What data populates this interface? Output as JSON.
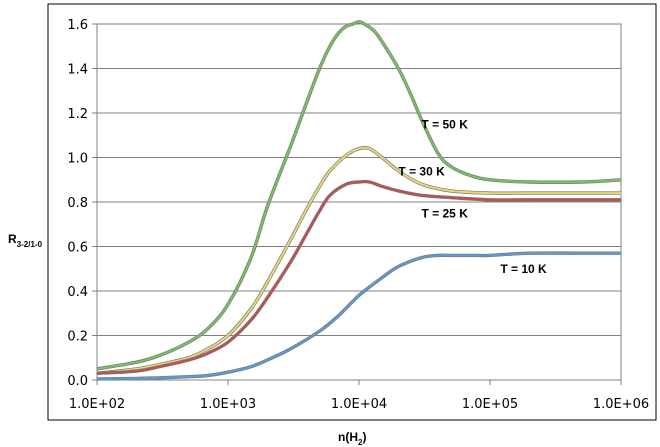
{
  "chart_data": {
    "type": "line",
    "xscale": "log",
    "xlim": [
      100,
      1000000
    ],
    "ylim": [
      0,
      1.6
    ],
    "grid": "horizontal",
    "xlabel": "n(H",
    "xlabel_sub": "2",
    "xlabel_suffix": ")",
    "ylabel": "R",
    "ylabel_sub": "3-2/1-0",
    "x_ticks": [
      "1.0E+02",
      "1.0E+03",
      "1.0E+04",
      "1.0E+05",
      "1.0E+06"
    ],
    "y_ticks": [
      "0.0",
      "0.2",
      "0.4",
      "0.6",
      "0.8",
      "1.0",
      "1.2",
      "1.4",
      "1.6"
    ],
    "series": [
      {
        "name": "T = 50 K",
        "color": "#77c25e",
        "x": [
          100,
          200,
          300,
          500,
          700,
          1000,
          1500,
          2000,
          3000,
          4000,
          5000,
          6000,
          7000,
          8000,
          9000,
          10000,
          11000,
          13000,
          15000,
          20000,
          25000,
          30000,
          40000,
          50000,
          70000,
          100000,
          200000,
          500000,
          1000000
        ],
        "y": [
          0.05,
          0.08,
          0.11,
          0.17,
          0.23,
          0.34,
          0.55,
          0.78,
          1.05,
          1.25,
          1.4,
          1.5,
          1.56,
          1.59,
          1.6,
          1.61,
          1.6,
          1.57,
          1.52,
          1.4,
          1.28,
          1.17,
          1.02,
          0.96,
          0.92,
          0.9,
          0.89,
          0.89,
          0.9
        ]
      },
      {
        "name": "T = 30 K",
        "color": "#e8d973",
        "x": [
          100,
          200,
          300,
          500,
          700,
          1000,
          1500,
          2000,
          3000,
          4000,
          5000,
          6000,
          8000,
          10000,
          12000,
          15000,
          20000,
          30000,
          50000,
          100000,
          200000,
          500000,
          1000000
        ],
        "y": [
          0.03,
          0.05,
          0.07,
          0.1,
          0.14,
          0.2,
          0.32,
          0.44,
          0.63,
          0.77,
          0.87,
          0.94,
          1.01,
          1.04,
          1.04,
          1.0,
          0.94,
          0.88,
          0.85,
          0.84,
          0.84,
          0.84,
          0.84
        ]
      },
      {
        "name": "T = 25 K",
        "color": "#c0504d",
        "x": [
          100,
          200,
          300,
          500,
          700,
          1000,
          1500,
          2000,
          3000,
          4000,
          5000,
          6000,
          8000,
          10000,
          12000,
          15000,
          20000,
          30000,
          50000,
          100000,
          200000,
          500000,
          1000000
        ],
        "y": [
          0.03,
          0.04,
          0.06,
          0.09,
          0.12,
          0.17,
          0.27,
          0.37,
          0.53,
          0.66,
          0.76,
          0.83,
          0.88,
          0.89,
          0.89,
          0.87,
          0.85,
          0.83,
          0.82,
          0.81,
          0.81,
          0.81,
          0.81
        ]
      },
      {
        "name": "T = 10 K",
        "color": "#5b9bd5",
        "x": [
          100,
          200,
          300,
          500,
          700,
          1000,
          1500,
          2000,
          3000,
          5000,
          7000,
          10000,
          15000,
          20000,
          30000,
          40000,
          50000,
          70000,
          100000,
          200000,
          500000,
          1000000
        ],
        "y": [
          0.005,
          0.007,
          0.01,
          0.015,
          0.02,
          0.035,
          0.06,
          0.09,
          0.14,
          0.22,
          0.29,
          0.38,
          0.46,
          0.51,
          0.55,
          0.56,
          0.56,
          0.56,
          0.56,
          0.57,
          0.57,
          0.57
        ]
      }
    ]
  }
}
